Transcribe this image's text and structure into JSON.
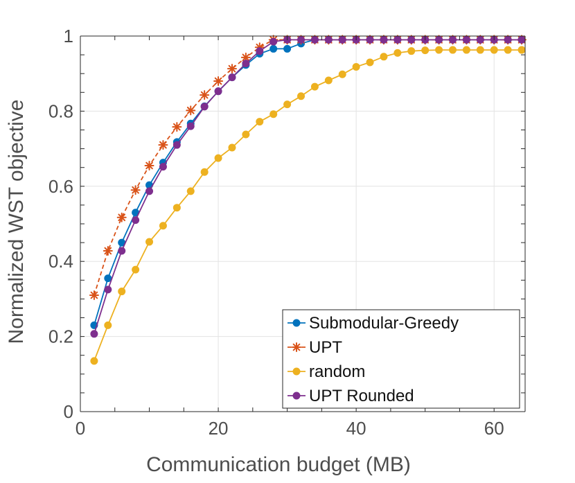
{
  "chart_data": {
    "type": "line",
    "title": "",
    "xlabel": "Communication budget (MB)",
    "ylabel": "Normalized WST objective",
    "xlim": [
      0,
      64.5
    ],
    "ylim": [
      0,
      1
    ],
    "xticks": [
      0,
      20,
      40,
      60
    ],
    "yticks": [
      0,
      0.2,
      0.4,
      0.6,
      0.8,
      1
    ],
    "xtick_labels": [
      "0",
      "20",
      "40",
      "60"
    ],
    "ytick_labels": [
      "0",
      "0.2",
      "0.4",
      "0.6",
      "0.8",
      "1"
    ],
    "grid": true,
    "legend_position": "bottom-right",
    "x": [
      2,
      4,
      6,
      8,
      10,
      12,
      14,
      16,
      18,
      20,
      22,
      24,
      26,
      28,
      30,
      32,
      34,
      36,
      38,
      40,
      42,
      44,
      46,
      48,
      50,
      52,
      54,
      56,
      58,
      60,
      62,
      64
    ],
    "series": [
      {
        "name": "Submodular-Greedy",
        "color": "#0072bd",
        "marker": "circle",
        "line": "solid",
        "values": [
          0.23,
          0.355,
          0.45,
          0.53,
          0.603,
          0.663,
          0.718,
          0.767,
          0.813,
          0.853,
          0.89,
          0.923,
          0.953,
          0.966,
          0.966,
          0.98,
          0.99,
          0.99,
          0.99,
          0.99,
          0.99,
          0.99,
          0.99,
          0.99,
          0.99,
          0.99,
          0.99,
          0.99,
          0.99,
          0.99,
          0.99,
          0.99
        ]
      },
      {
        "name": "UPT",
        "color": "#d95319",
        "marker": "asterisk",
        "line": "dashed",
        "values": [
          0.31,
          0.428,
          0.517,
          0.59,
          0.655,
          0.71,
          0.758,
          0.802,
          0.843,
          0.88,
          0.913,
          0.943,
          0.97,
          0.99,
          0.99,
          0.99,
          0.99,
          0.99,
          0.99,
          0.99,
          0.99,
          0.99,
          0.99,
          0.99,
          0.99,
          0.99,
          0.99,
          0.99,
          0.99,
          0.99,
          0.99,
          0.99
        ]
      },
      {
        "name": "random",
        "color": "#edb120",
        "marker": "circle",
        "line": "solid",
        "values": [
          0.135,
          0.23,
          0.32,
          0.378,
          0.452,
          0.495,
          0.543,
          0.587,
          0.638,
          0.675,
          0.703,
          0.738,
          0.772,
          0.792,
          0.818,
          0.84,
          0.865,
          0.882,
          0.898,
          0.918,
          0.93,
          0.945,
          0.955,
          0.96,
          0.962,
          0.963,
          0.963,
          0.963,
          0.963,
          0.963,
          0.963,
          0.963
        ]
      },
      {
        "name": "UPT Rounded",
        "color": "#7e2f8e",
        "marker": "circle",
        "line": "solid",
        "values": [
          0.207,
          0.325,
          0.428,
          0.51,
          0.587,
          0.652,
          0.71,
          0.76,
          0.812,
          0.853,
          0.89,
          0.927,
          0.96,
          0.985,
          0.99,
          0.99,
          0.99,
          0.99,
          0.99,
          0.99,
          0.99,
          0.99,
          0.99,
          0.99,
          0.99,
          0.99,
          0.99,
          0.99,
          0.99,
          0.99,
          0.99,
          0.99
        ]
      }
    ]
  }
}
